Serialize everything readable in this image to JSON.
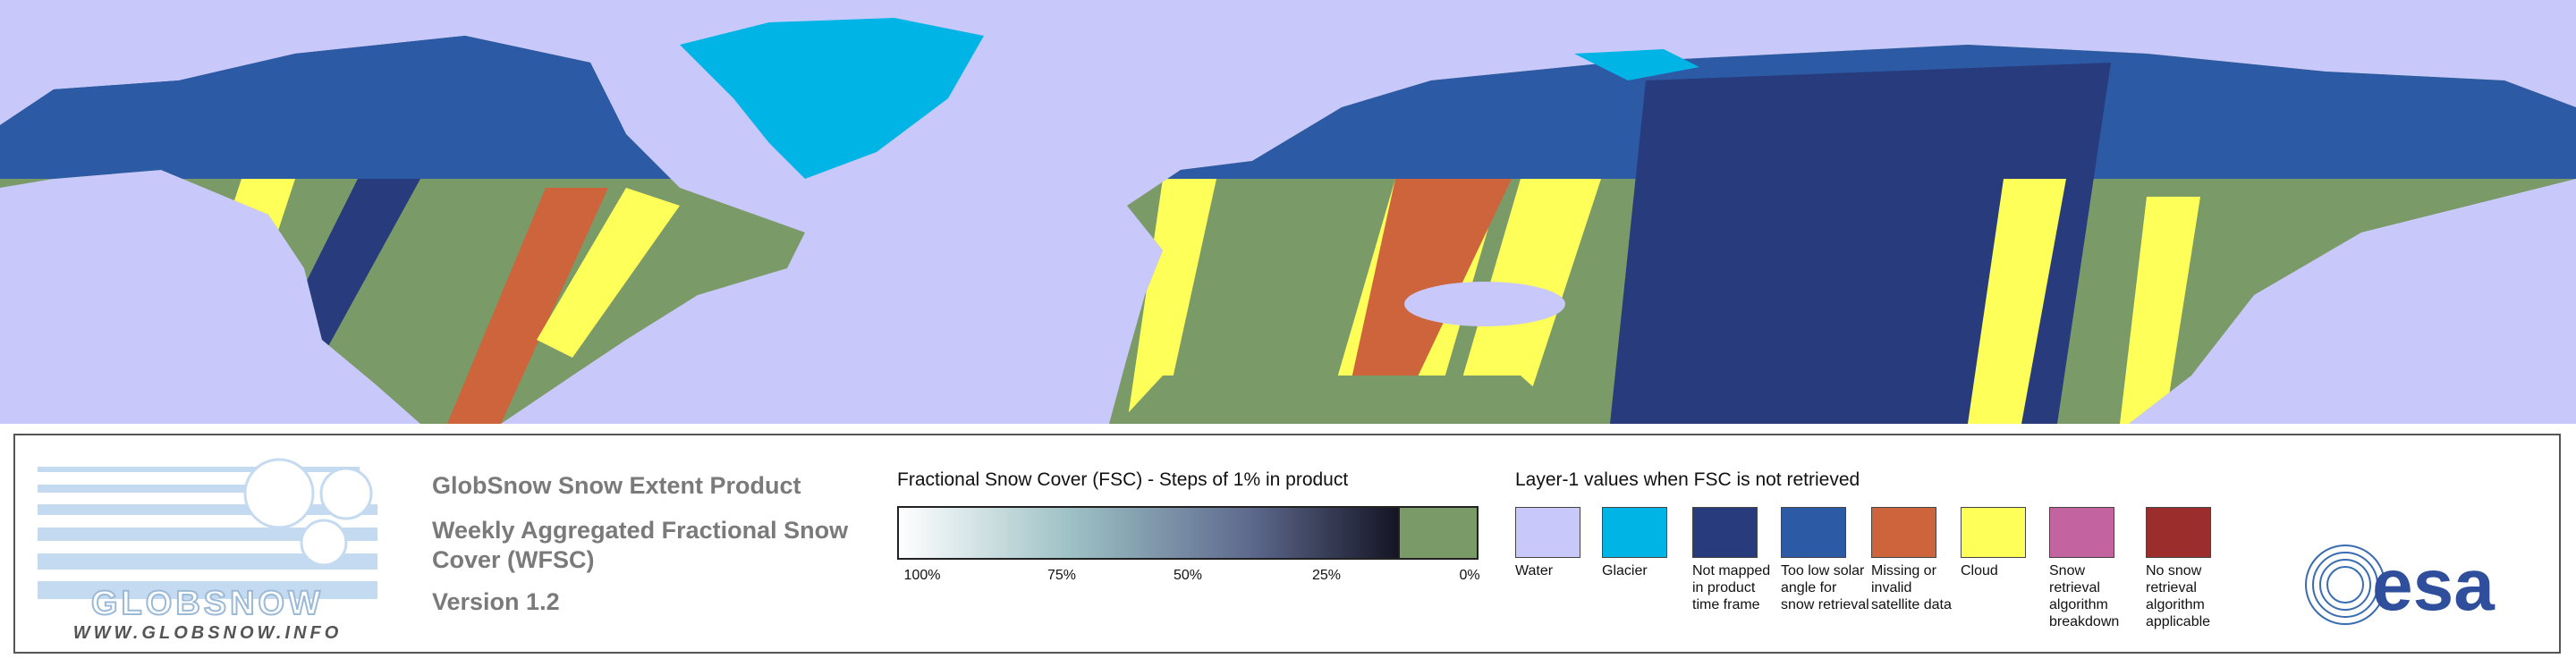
{
  "logo": {
    "name": "GLOBSNOW",
    "url": "WWW.GLOBSNOW.INFO"
  },
  "product": {
    "title": "GlobSnow Snow Extent Product",
    "subtitle": "Weekly Aggregated Fractional Snow Cover (WFSC)",
    "version": "Version 1.2"
  },
  "colorbar": {
    "title": "Fractional Snow Cover (FSC) - Steps of 1% in product",
    "ticks": [
      "100%",
      "75%",
      "50%",
      "25%",
      "0%"
    ]
  },
  "layer1": {
    "title": "Layer-1 values when FSC is not retrieved",
    "items": [
      {
        "label": "Water",
        "color": "#c8c8fa"
      },
      {
        "label": "Glacier",
        "color": "#00b4e6"
      },
      {
        "label": "Not mapped in product time frame",
        "color": "#283c7d"
      },
      {
        "label": "Too low solar angle for snow retrieval",
        "color": "#2d5aa5"
      },
      {
        "label": "Missing or invalid satellite data",
        "color": "#cd643c"
      },
      {
        "label": "Cloud",
        "color": "#ffff5a"
      },
      {
        "label": "Snow retrieval algorithm breakdown",
        "color": "#c364a0"
      },
      {
        "label": "No snow retrieval algorithm applicable",
        "color": "#9b2d2d"
      }
    ]
  },
  "agency": "esa"
}
